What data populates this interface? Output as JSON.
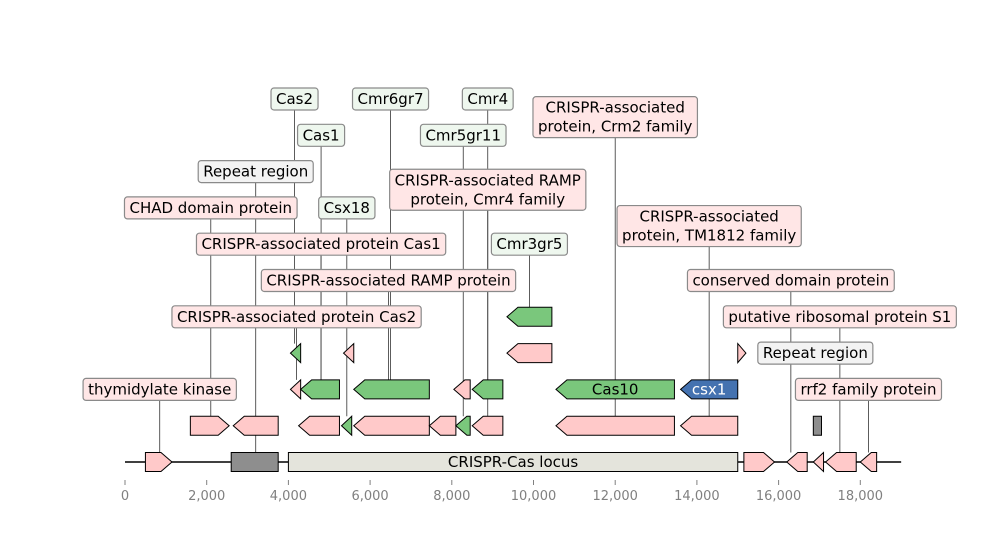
{
  "chart_data": {
    "type": "gene-map",
    "axis": {
      "xlim": [
        0,
        19000
      ],
      "ticks": [
        0,
        2000,
        4000,
        6000,
        8000,
        10000,
        12000,
        14000,
        16000,
        18000
      ],
      "tick_labels": [
        "0",
        "2,000",
        "4,000",
        "6,000",
        "8,000",
        "10,000",
        "12,000",
        "14,000",
        "16,000",
        "18,000"
      ]
    },
    "colors": {
      "pink_feature": "#ffc9c9",
      "green_feature": "#7ac77c",
      "blue_feature": "#4472b0",
      "gray_feature": "#8e8e8e",
      "locus_feature": "#e4e4dc",
      "pink_label_bg": "#ffe6e6",
      "green_label_bg": "#eef7ee",
      "gray_label_bg": "#f3f3f3"
    },
    "features": [
      {
        "id": "f-thymidylate",
        "start": 500,
        "end": 1150,
        "strand": 1,
        "row": 0,
        "color": "pink"
      },
      {
        "id": "f-repeat-gray-1",
        "start": 2600,
        "end": 3750,
        "strand": 0,
        "row": 0,
        "color": "gray"
      },
      {
        "id": "f-locus",
        "start": 4000,
        "end": 15000,
        "strand": 0,
        "row": 0,
        "color": "locus",
        "inline_label": "CRISPR-Cas locus"
      },
      {
        "id": "f-r1",
        "start": 15150,
        "end": 15900,
        "strand": 1,
        "row": 0,
        "color": "pink"
      },
      {
        "id": "f-r2",
        "start": 16200,
        "end": 16700,
        "strand": -1,
        "row": 0,
        "color": "pink"
      },
      {
        "id": "f-r3",
        "start": 16850,
        "end": 17100,
        "strand": -1,
        "row": 0,
        "color": "pink"
      },
      {
        "id": "f-r4",
        "start": 17150,
        "end": 17900,
        "strand": -1,
        "row": 0,
        "color": "pink"
      },
      {
        "id": "f-r5",
        "start": 18000,
        "end": 18400,
        "strand": -1,
        "row": 0,
        "color": "pink"
      },
      {
        "id": "f-chad",
        "start": 1600,
        "end": 2550,
        "strand": 1,
        "row": 1,
        "color": "pink"
      },
      {
        "id": "f-repeat-region-1",
        "start": 2650,
        "end": 3750,
        "strand": -1,
        "row": 1,
        "color": "pink"
      },
      {
        "id": "f-cas2-a",
        "start": 4250,
        "end": 5250,
        "strand": -1,
        "row": 1,
        "color": "pink"
      },
      {
        "id": "f-csx18",
        "start": 5300,
        "end": 5550,
        "strand": -1,
        "row": 1,
        "color": "green"
      },
      {
        "id": "f-cmr6",
        "start": 5600,
        "end": 7450,
        "strand": -1,
        "row": 1,
        "color": "pink"
      },
      {
        "id": "f-ramp",
        "start": 7450,
        "end": 8100,
        "strand": -1,
        "row": 1,
        "color": "pink"
      },
      {
        "id": "f-cmr5",
        "start": 8100,
        "end": 8450,
        "strand": -1,
        "row": 1,
        "color": "green"
      },
      {
        "id": "f-cmr4",
        "start": 8500,
        "end": 9250,
        "strand": -1,
        "row": 1,
        "color": "pink"
      },
      {
        "id": "f-crm2",
        "start": 10550,
        "end": 13450,
        "strand": -1,
        "row": 1,
        "color": "pink"
      },
      {
        "id": "f-tm1812",
        "start": 13600,
        "end": 15000,
        "strand": -1,
        "row": 1,
        "color": "pink"
      },
      {
        "id": "f-gray-small",
        "start": 16850,
        "end": 17050,
        "strand": 0,
        "row": 1,
        "color": "gray"
      },
      {
        "id": "f-cas2-pink",
        "start": 4050,
        "end": 4300,
        "strand": -1,
        "row": 2,
        "color": "pink"
      },
      {
        "id": "f-cas1",
        "start": 4300,
        "end": 5250,
        "strand": -1,
        "row": 2,
        "color": "green"
      },
      {
        "id": "f-cmr6gr7",
        "start": 5600,
        "end": 7450,
        "strand": -1,
        "row": 2,
        "color": "green"
      },
      {
        "id": "f-cas1-pink",
        "start": 8050,
        "end": 8450,
        "strand": -1,
        "row": 2,
        "color": "pink"
      },
      {
        "id": "f-cmr4gr",
        "start": 8500,
        "end": 9250,
        "strand": -1,
        "row": 2,
        "color": "green"
      },
      {
        "id": "f-cas10",
        "start": 10550,
        "end": 13450,
        "strand": -1,
        "row": 2,
        "color": "green",
        "inline_label": "Cas10"
      },
      {
        "id": "f-csx1",
        "start": 13600,
        "end": 15000,
        "strand": -1,
        "row": 2,
        "color": "blue",
        "inline_label": "csx1"
      },
      {
        "id": "f-cas2-green",
        "start": 4050,
        "end": 4300,
        "strand": -1,
        "row": 3,
        "color": "green"
      },
      {
        "id": "f-repeat-pink-2",
        "start": 5350,
        "end": 5600,
        "strand": -1,
        "row": 3,
        "color": "pink"
      },
      {
        "id": "f-cmr3-pink",
        "start": 9350,
        "end": 10450,
        "strand": -1,
        "row": 3,
        "color": "pink"
      },
      {
        "id": "f-repeat-region-2",
        "start": 15000,
        "end": 15200,
        "strand": 1,
        "row": 3,
        "color": "pink"
      },
      {
        "id": "f-cmr3gr5",
        "start": 9350,
        "end": 10450,
        "strand": -1,
        "row": 4,
        "color": "green"
      }
    ],
    "labels": [
      {
        "text": "thymidylate kinase",
        "anchor": 850,
        "feature_row": 0,
        "label_row": 2,
        "style": "pink"
      },
      {
        "text": "CRISPR-associated protein Cas2",
        "anchor": 4200,
        "feature_row": 2,
        "label_row": 4,
        "style": "pink"
      },
      {
        "text": "CRISPR-associated RAMP protein",
        "anchor": 6450,
        "feature_row": 2,
        "label_row": 5,
        "style": "pink"
      },
      {
        "text": "CRISPR-associated protein Cas1",
        "anchor": 4800,
        "feature_row": 2,
        "label_row": 6,
        "style": "pink"
      },
      {
        "text": "CHAD domain protein",
        "anchor": 2100,
        "feature_row": 1,
        "label_row": 7,
        "style": "pink"
      },
      {
        "text": "Csx18",
        "anchor": 5430,
        "feature_row": 1,
        "label_row": 7,
        "style": "green"
      },
      {
        "text": "Repeat region",
        "anchor": 3200,
        "feature_row": 0,
        "label_row": 8,
        "style": "gray"
      },
      {
        "text": "Cas1",
        "anchor": 4800,
        "feature_row": 2,
        "label_row": 9,
        "style": "green"
      },
      {
        "text": "Cmr5gr11",
        "anchor": 8280,
        "feature_row": 1,
        "label_row": 9,
        "style": "green"
      },
      {
        "text": "Cas2",
        "anchor": 4150,
        "feature_row": 3,
        "label_row": 10,
        "style": "green"
      },
      {
        "text": "Cmr6gr7",
        "anchor": 6500,
        "feature_row": 2,
        "label_row": 10,
        "style": "green"
      },
      {
        "text": "Cmr4",
        "anchor": 8880,
        "feature_row": 2,
        "label_row": 10,
        "style": "green"
      },
      {
        "text": "CRISPR-associated RAMP|protein, Cmr4 family",
        "anchor": 8880,
        "feature_row": 1,
        "label_row": 7.5,
        "style": "pink"
      },
      {
        "text": "Cmr3gr5",
        "anchor": 9900,
        "feature_row": 4,
        "label_row": 6,
        "style": "green"
      },
      {
        "text": "CRISPR-associated|protein, Crm2 family",
        "anchor": 12000,
        "feature_row": 1,
        "label_row": 9.5,
        "style": "pink"
      },
      {
        "text": "CRISPR-associated|protein, TM1812 family",
        "anchor": 14300,
        "feature_row": 1,
        "label_row": 6.5,
        "style": "pink"
      },
      {
        "text": "conserved domain protein",
        "anchor": 16300,
        "feature_row": 0,
        "label_row": 5,
        "style": "pink"
      },
      {
        "text": "putative ribosomal protein S1",
        "anchor": 17500,
        "feature_row": 0,
        "label_row": 4,
        "style": "pink"
      },
      {
        "text": "Repeat region",
        "anchor": 15100,
        "feature_row": 3,
        "label_row": 3,
        "style": "gray",
        "side": "right"
      },
      {
        "text": "rrf2 family protein",
        "anchor": 18200,
        "feature_row": 0,
        "label_row": 2,
        "style": "pink"
      }
    ]
  }
}
